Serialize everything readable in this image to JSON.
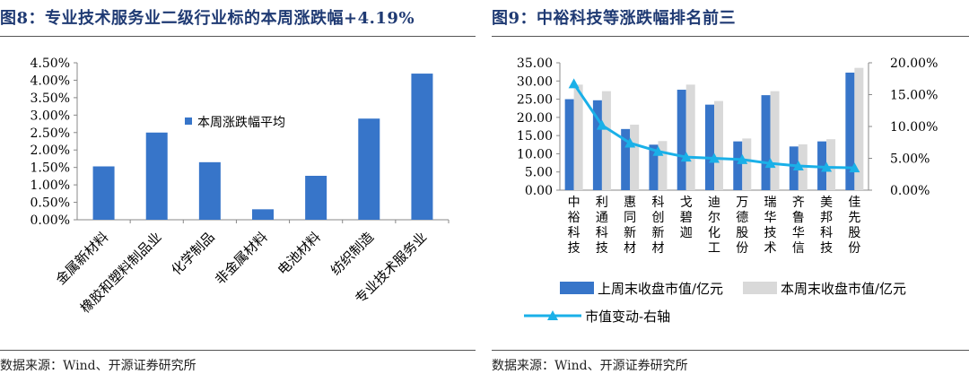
{
  "left": {
    "title": "图8：专业技术服务业二级行业标的本周涨跌幅+4.19%",
    "source": "数据来源：Wind、开源证券研究所"
  },
  "right": {
    "title": "图9：中裕科技等涨跌幅排名前三",
    "source": "数据来源：Wind、开源证券研究所"
  },
  "colors": {
    "dark_blue": "#3775c9",
    "light_gray": "#d9d9d9",
    "cyan": "#1ab0e8",
    "title_blue": "#1f3a73"
  },
  "chart_data": [
    {
      "type": "bar",
      "title": "专业技术服务业二级行业标的本周涨跌幅+4.19%",
      "categories": [
        "金属新材料",
        "橡胶和塑料制品业",
        "化学制品",
        "非金属材料",
        "电池材料",
        "纺织制造",
        "专业技术服务业"
      ],
      "series": [
        {
          "name": "本周涨跌幅平均",
          "values": [
            0.0153,
            0.025,
            0.0165,
            0.003,
            0.0126,
            0.029,
            0.0419
          ]
        }
      ],
      "ylim": [
        0,
        0.045
      ],
      "yticks": [
        "0.00%",
        "0.50%",
        "1.00%",
        "1.50%",
        "2.00%",
        "2.50%",
        "3.00%",
        "3.50%",
        "4.00%",
        "4.50%"
      ],
      "legend": "本周涨跌幅平均",
      "legend_position": "center"
    },
    {
      "type": "bar+line",
      "title": "中裕科技等涨跌幅排名前三",
      "categories": [
        "中裕科技",
        "利通科技",
        "惠同新材",
        "科创新材",
        "戈碧迦",
        "迪尔化工",
        "万德股份",
        "瑞华技术",
        "齐鲁华信",
        "美邦科技",
        "佳先股份"
      ],
      "series": [
        {
          "name": "上周末收盘市值/亿元",
          "axis": "left",
          "values": [
            25.0,
            24.7,
            16.8,
            12.5,
            27.6,
            23.5,
            13.4,
            26.1,
            12.0,
            13.4,
            32.3
          ]
        },
        {
          "name": "本周末收盘市值/亿元",
          "axis": "left",
          "values": [
            29.0,
            27.2,
            18.0,
            13.5,
            29.0,
            24.5,
            14.2,
            27.2,
            12.6,
            14.0,
            33.6
          ]
        },
        {
          "name": "市值变动-右轴",
          "axis": "right",
          "values": [
            0.167,
            0.102,
            0.074,
            0.061,
            0.052,
            0.05,
            0.048,
            0.042,
            0.038,
            0.036,
            0.035
          ]
        }
      ],
      "ylim_left": [
        0,
        35
      ],
      "yticks_left": [
        "0.00",
        "5.00",
        "10.00",
        "15.00",
        "20.00",
        "25.00",
        "30.00",
        "35.00"
      ],
      "ylim_right": [
        0,
        0.2
      ],
      "yticks_right": [
        "0.00%",
        "5.00%",
        "10.00%",
        "15.00%",
        "20.00%"
      ],
      "legend_position": "bottom"
    }
  ]
}
